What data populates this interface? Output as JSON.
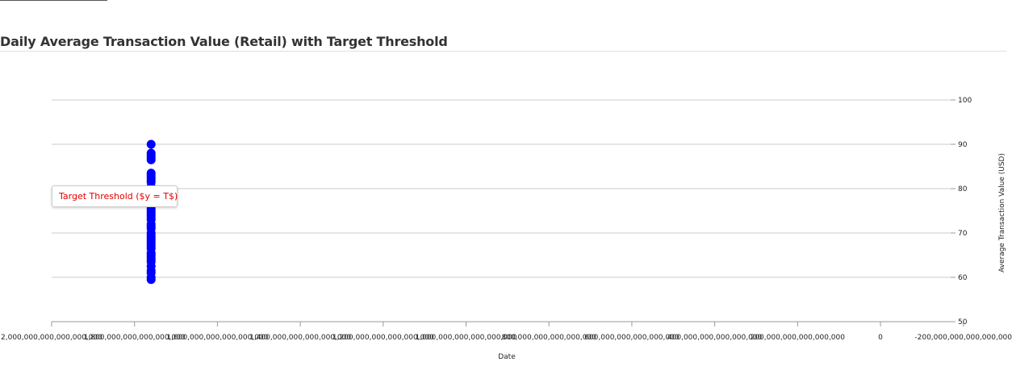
{
  "title": "Daily Average Transaction Value (Retail) with Target Threshold",
  "chart_data": {
    "type": "scatter",
    "title": "Daily Average Transaction Value (Retail) with Target Threshold",
    "xlabel": "Date",
    "ylabel": "Average Transaction Value (USD)",
    "ylim": [
      50,
      100
    ],
    "xlim": [
      2000000000000000000,
      -200000000000000000
    ],
    "x_reversed": true,
    "y_axis_side": "right",
    "grid": true,
    "y_ticks": [
      50,
      60,
      70,
      80,
      90,
      100
    ],
    "x_tick_values": [
      2000000000000000000,
      1800000000000000000,
      1600000000000000000,
      1400000000000000000,
      1200000000000000000,
      1000000000000000000,
      800000000000000000,
      600000000000000000,
      400000000000000000,
      200000000000000000,
      0,
      -200000000000000000
    ],
    "x_tick_labels": [
      "2,000,000,000,000,000,000",
      "1,800,000,000,000,000,000",
      "1,600,000,000,000,000,000",
      "1,400,000,000,000,000,000",
      "1,200,000,000,000,000,000",
      "1,000,000,000,000,000,000",
      "800,000,000,000,000,000",
      "600,000,000,000,000,000",
      "400,000,000,000,000,000",
      "200,000,000,000,000,000",
      "0",
      "-200,000,000,000,000,000"
    ],
    "series": [
      {
        "color": "#0000ff",
        "x_all": 1760000000000000000,
        "values": [
          90.0,
          88.0,
          87.5,
          87.0,
          86.5,
          83.5,
          83.0,
          82.5,
          82.0,
          81.5,
          80.5,
          79.5,
          79.0,
          78.0,
          77.5,
          77.0,
          76.5,
          76.0,
          75.5,
          75.0,
          74.5,
          74.0,
          73.5,
          73.0,
          72.0,
          71.5,
          71.0,
          70.0,
          69.5,
          69.0,
          68.5,
          68.0,
          67.5,
          67.0,
          66.5,
          65.5,
          65.0,
          64.5,
          64.0,
          63.5,
          62.5,
          61.5,
          61.0,
          60.0,
          59.5
        ]
      }
    ],
    "annotation": {
      "text": "Target Threshold ($y = T$)",
      "color": "#e00000"
    }
  }
}
